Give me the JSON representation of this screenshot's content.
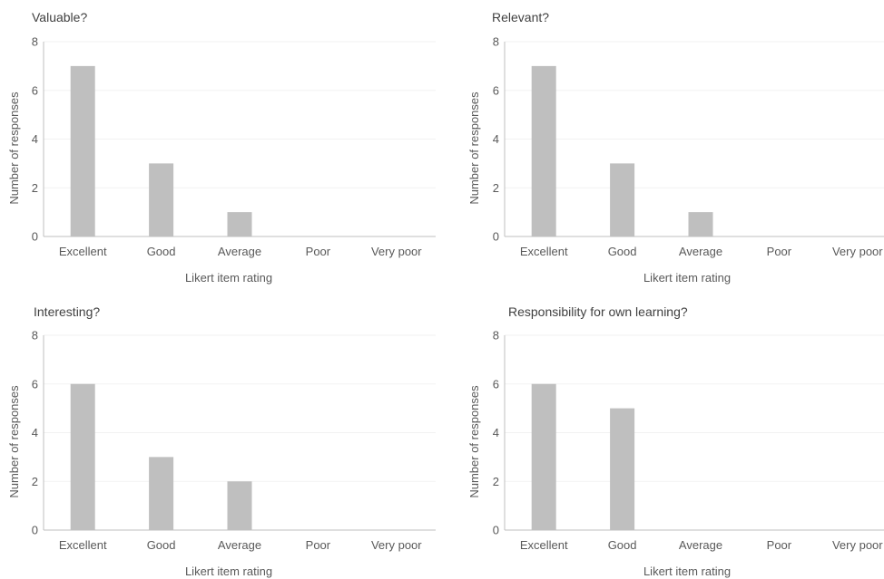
{
  "chart_data": [
    {
      "type": "bar",
      "title": "Valuable?",
      "categories": [
        "Excellent",
        "Good",
        "Average",
        "Poor",
        "Very poor"
      ],
      "values": [
        7,
        3,
        1,
        0,
        0
      ],
      "xlabel": "Likert item rating",
      "ylabel": "Number of responses",
      "ylim": [
        0,
        8
      ],
      "yticks": [
        0,
        2,
        4,
        6,
        8
      ],
      "color": "#bfbfbf",
      "grid": true
    },
    {
      "type": "bar",
      "title": "Relevant?",
      "categories": [
        "Excellent",
        "Good",
        "Average",
        "Poor",
        "Very poor"
      ],
      "values": [
        7,
        3,
        1,
        0,
        0
      ],
      "xlabel": "Likert item rating",
      "ylabel": "Number of responses",
      "ylim": [
        0,
        8
      ],
      "yticks": [
        0,
        2,
        4,
        6,
        8
      ],
      "color": "#bfbfbf",
      "grid": true
    },
    {
      "type": "bar",
      "title": "Interesting?",
      "categories": [
        "Excellent",
        "Good",
        "Average",
        "Poor",
        "Very poor"
      ],
      "values": [
        6,
        3,
        2,
        0,
        0
      ],
      "xlabel": "Likert item rating",
      "ylabel": "Number of responses",
      "ylim": [
        0,
        8
      ],
      "yticks": [
        0,
        2,
        4,
        6,
        8
      ],
      "color": "#bfbfbf",
      "grid": true
    },
    {
      "type": "bar",
      "title": "Responsibility for own learning?",
      "categories": [
        "Excellent",
        "Good",
        "Average",
        "Poor",
        "Very poor"
      ],
      "values": [
        6,
        5,
        0,
        0,
        0
      ],
      "xlabel": "Likert item rating",
      "ylabel": "Number of responses",
      "ylim": [
        0,
        8
      ],
      "yticks": [
        0,
        2,
        4,
        6,
        8
      ],
      "color": "#bfbfbf",
      "grid": true
    }
  ]
}
